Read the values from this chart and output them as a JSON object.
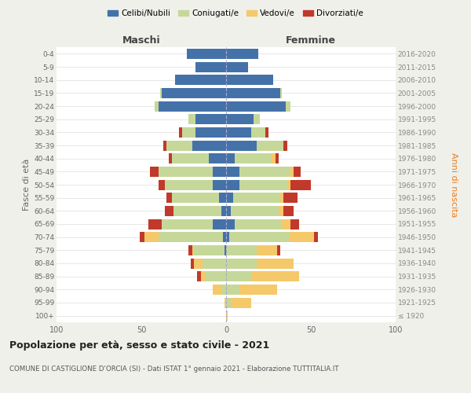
{
  "age_groups": [
    "100+",
    "95-99",
    "90-94",
    "85-89",
    "80-84",
    "75-79",
    "70-74",
    "65-69",
    "60-64",
    "55-59",
    "50-54",
    "45-49",
    "40-44",
    "35-39",
    "30-34",
    "25-29",
    "20-24",
    "15-19",
    "10-14",
    "5-9",
    "0-4"
  ],
  "birth_years": [
    "≤ 1920",
    "1921-1925",
    "1926-1930",
    "1931-1935",
    "1936-1940",
    "1941-1945",
    "1946-1950",
    "1951-1955",
    "1956-1960",
    "1961-1965",
    "1966-1970",
    "1971-1975",
    "1976-1980",
    "1981-1985",
    "1986-1990",
    "1991-1995",
    "1996-2000",
    "2001-2005",
    "2006-2010",
    "2011-2015",
    "2016-2020"
  ],
  "maschi": {
    "celibi": [
      0,
      0,
      0,
      0,
      0,
      1,
      2,
      8,
      3,
      4,
      8,
      8,
      10,
      20,
      18,
      18,
      40,
      38,
      30,
      18,
      23
    ],
    "coniugati": [
      0,
      0,
      3,
      12,
      14,
      18,
      38,
      30,
      28,
      28,
      28,
      32,
      22,
      15,
      8,
      4,
      2,
      1,
      0,
      0,
      0
    ],
    "vedovi": [
      0,
      1,
      5,
      3,
      5,
      1,
      8,
      0,
      0,
      0,
      0,
      0,
      0,
      0,
      0,
      0,
      0,
      0,
      0,
      0,
      0
    ],
    "divorziati": [
      0,
      0,
      0,
      2,
      2,
      2,
      3,
      8,
      5,
      3,
      4,
      5,
      2,
      2,
      2,
      0,
      0,
      0,
      0,
      0,
      0
    ]
  },
  "femmine": {
    "nubili": [
      0,
      0,
      0,
      0,
      0,
      0,
      2,
      5,
      3,
      4,
      8,
      8,
      5,
      18,
      15,
      16,
      35,
      32,
      28,
      13,
      19
    ],
    "coniugate": [
      0,
      3,
      8,
      15,
      18,
      18,
      35,
      28,
      28,
      28,
      28,
      30,
      22,
      16,
      8,
      4,
      3,
      1,
      0,
      0,
      0
    ],
    "vedove": [
      1,
      12,
      22,
      28,
      22,
      12,
      15,
      5,
      3,
      2,
      2,
      2,
      2,
      0,
      0,
      0,
      0,
      0,
      0,
      0,
      0
    ],
    "divorziate": [
      0,
      0,
      0,
      0,
      0,
      2,
      2,
      5,
      6,
      8,
      12,
      4,
      2,
      2,
      2,
      0,
      0,
      0,
      0,
      0,
      0
    ]
  },
  "colors": {
    "celibi_nubili": "#4472a8",
    "coniugati": "#c5d89a",
    "vedovi": "#f5c96a",
    "divorziati": "#c0392b"
  },
  "xlim": 100,
  "title": "Popolazione per età, sesso e stato civile - 2021",
  "subtitle": "COMUNE DI CASTIGLIONE D'ORCIA (SI) - Dati ISTAT 1° gennaio 2021 - Elaborazione TUTTITALIA.IT",
  "ylabel_left": "Fasce di età",
  "ylabel_right": "Anni di nascita",
  "xlabel_maschi": "Maschi",
  "xlabel_femmine": "Femmine",
  "background_color": "#f0f0eb",
  "plot_background": "#ffffff"
}
